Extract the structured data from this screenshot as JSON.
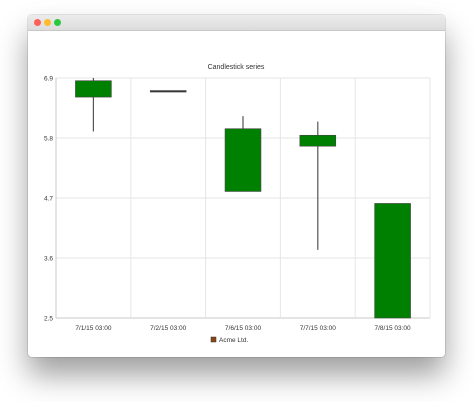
{
  "window": {
    "controls": [
      "close",
      "minimize",
      "zoom"
    ]
  },
  "chart_data": {
    "type": "candlestick",
    "title": "Candlestick series",
    "xlabel": "",
    "ylabel": "",
    "ylim": [
      2.5,
      6.9
    ],
    "y_ticks": [
      "6.9",
      "5.8",
      "4.7",
      "3.6",
      "2.5"
    ],
    "grid": true,
    "legend_position": "bottom",
    "categories": [
      "7/1/15 03:00",
      "7/2/15 03:00",
      "7/6/15 03:00",
      "7/7/15 03:00",
      "7/8/15 03:00"
    ],
    "series": [
      {
        "name": "Acme Ltd.",
        "color": "#8b4513",
        "candles": [
          {
            "open": 6.55,
            "high": 6.9,
            "low": 5.92,
            "close": 6.85
          },
          {
            "open": 6.67,
            "high": 6.67,
            "low": 6.67,
            "close": 6.67
          },
          {
            "open": 4.82,
            "high": 6.2,
            "low": 4.82,
            "close": 5.97
          },
          {
            "open": 5.65,
            "high": 6.1,
            "low": 3.75,
            "close": 5.85
          },
          {
            "open": 2.5,
            "high": 4.6,
            "low": 2.5,
            "close": 4.6
          }
        ]
      }
    ],
    "colors": {
      "increasing": "#008000",
      "decreasing": "#ff0000",
      "wick": "#555555",
      "grid": "#e6e6e6",
      "axis": "#c8c8c8"
    }
  }
}
